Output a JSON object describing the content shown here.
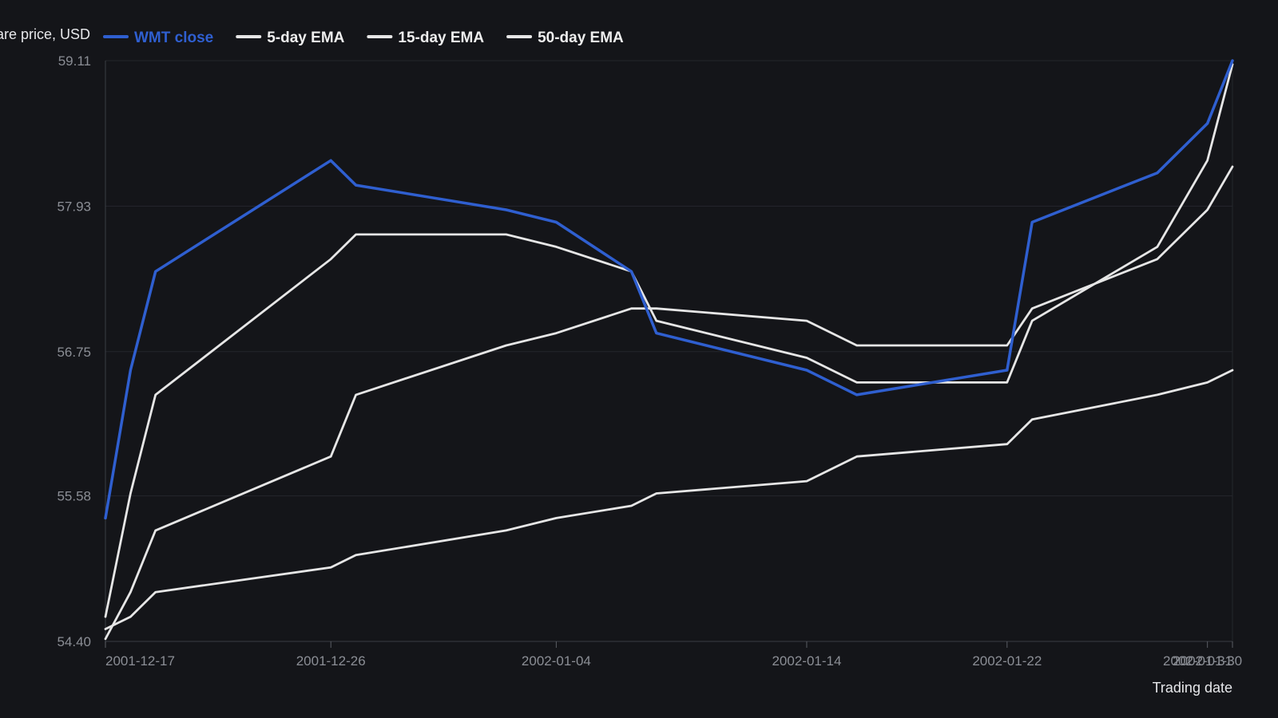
{
  "chart_data": {
    "type": "line",
    "title": "",
    "ylabel": "Share price, USD",
    "xlabel": "Trading date",
    "x": [
      "2001-12-17",
      "2001-12-18",
      "2001-12-19",
      "2001-12-26",
      "2001-12-27",
      "2002-01-02",
      "2002-01-04",
      "2002-01-07",
      "2002-01-08",
      "2002-01-14",
      "2002-01-16",
      "2002-01-22",
      "2002-01-23",
      "2002-01-28",
      "2002-01-30",
      "2002-01-31"
    ],
    "x_tick_labels": [
      "2001-12-17",
      "2001-12-26",
      "2002-01-04",
      "2002-01-14",
      "2002-01-22",
      "2002-01-30",
      "2002-01-31"
    ],
    "y_tick_labels": [
      "54.40",
      "55.58",
      "56.75",
      "57.93",
      "59.11"
    ],
    "ylim": [
      54.4,
      59.11
    ],
    "grid": "horizontal",
    "legend_position": "top-left",
    "series": [
      {
        "name": "WMT close",
        "color": "#2f5fd0",
        "values": [
          55.4,
          56.6,
          57.4,
          58.3,
          58.1,
          57.9,
          57.8,
          57.4,
          56.9,
          56.6,
          56.4,
          56.6,
          57.8,
          58.2,
          58.6,
          59.11
        ]
      },
      {
        "name": "5-day EMA",
        "color": "#e6e6e6",
        "values": [
          54.6,
          55.6,
          56.4,
          57.5,
          57.7,
          57.7,
          57.6,
          57.4,
          57.0,
          56.7,
          56.5,
          56.5,
          57.0,
          57.6,
          58.3,
          59.08
        ]
      },
      {
        "name": "15-day EMA",
        "color": "#e6e6e6",
        "values": [
          54.42,
          54.8,
          55.3,
          55.9,
          56.4,
          56.8,
          56.9,
          57.1,
          57.1,
          57.0,
          56.8,
          56.8,
          57.1,
          57.5,
          57.9,
          58.25
        ]
      },
      {
        "name": "50-day EMA",
        "color": "#e6e6e6",
        "values": [
          54.5,
          54.6,
          54.8,
          55.0,
          55.1,
          55.3,
          55.4,
          55.5,
          55.6,
          55.7,
          55.9,
          56.0,
          56.2,
          56.4,
          56.5,
          56.6
        ]
      }
    ]
  }
}
